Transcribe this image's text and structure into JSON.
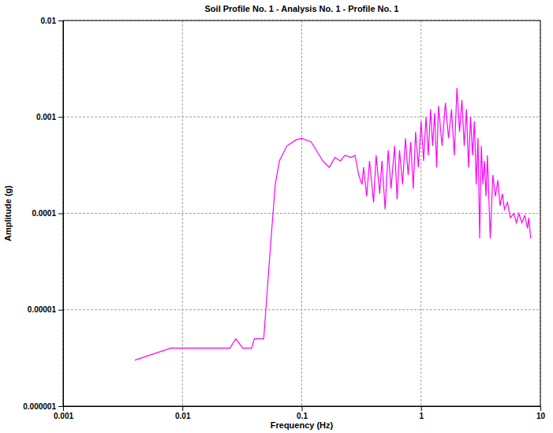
{
  "chart_data": {
    "type": "line",
    "title": "Soil Profile No.  1 - Analysis No.  1 - Profile No. 1",
    "x_label": "Frequency (Hz)",
    "y_label": "Amplitude (g)",
    "log": true,
    "grid": true,
    "xlim": [
      0.001,
      10
    ],
    "xticks": [
      0.001,
      0.01,
      0.1,
      1,
      10
    ],
    "ylim": [
      1e-06,
      0.01
    ],
    "yticks": [
      1e-06,
      1e-05,
      0.0001,
      0.001,
      0.01
    ],
    "series": [
      {
        "name": "Profile No. 1",
        "color": "#ff00ff",
        "x": [
          0.004,
          0.008,
          0.025,
          0.028,
          0.032,
          0.038,
          0.04,
          0.048,
          0.05,
          0.055,
          0.06,
          0.065,
          0.075,
          0.09,
          0.1,
          0.12,
          0.15,
          0.17,
          0.19,
          0.21,
          0.23,
          0.26,
          0.28,
          0.3,
          0.32,
          0.33,
          0.35,
          0.37,
          0.4,
          0.42,
          0.45,
          0.47,
          0.5,
          0.53,
          0.56,
          0.6,
          0.63,
          0.66,
          0.7,
          0.74,
          0.78,
          0.82,
          0.86,
          0.9,
          0.95,
          1.0,
          1.05,
          1.1,
          1.15,
          1.2,
          1.25,
          1.3,
          1.35,
          1.4,
          1.5,
          1.6,
          1.7,
          1.8,
          1.9,
          2.0,
          2.1,
          2.2,
          2.3,
          2.4,
          2.5,
          2.6,
          2.7,
          2.8,
          2.9,
          3.0,
          3.1,
          3.2,
          3.3,
          3.4,
          3.5,
          3.6,
          3.8,
          4.0,
          4.2,
          4.4,
          4.6,
          4.8,
          5.0,
          5.3,
          5.6,
          6.0,
          6.3,
          6.6,
          7.0,
          7.4,
          7.8,
          8.0,
          8.3
        ],
        "values": [
          3e-06,
          4e-06,
          4e-06,
          5e-06,
          4e-06,
          4e-06,
          5e-06,
          5e-06,
          1e-05,
          5e-05,
          0.0002,
          0.00035,
          0.0005,
          0.00058,
          0.0006,
          0.00055,
          0.00035,
          0.0003,
          0.00038,
          0.00035,
          0.0004,
          0.00038,
          0.0004,
          0.00025,
          0.0002,
          0.0003,
          0.00015,
          0.00035,
          0.00013,
          0.0004,
          0.00016,
          0.00035,
          0.00011,
          0.00045,
          0.00018,
          0.0005,
          0.00014,
          0.00045,
          0.0002,
          0.0006,
          0.00025,
          0.00055,
          0.00018,
          0.0007,
          0.0003,
          0.0009,
          0.00035,
          0.001,
          0.0004,
          0.0012,
          0.0005,
          0.0011,
          0.0003,
          0.0013,
          0.0005,
          0.0014,
          0.0006,
          0.0012,
          0.0004,
          0.002,
          0.0007,
          0.0015,
          0.0005,
          0.0012,
          0.0003,
          0.001,
          0.0004,
          0.0009,
          0.0002,
          0.0006,
          5.5e-05,
          0.0005,
          0.0002,
          0.00035,
          0.00015,
          0.0004,
          5.5e-05,
          0.00025,
          0.00015,
          0.00022,
          0.00012,
          0.00016,
          0.00011,
          0.00013,
          9e-05,
          0.0001,
          8e-05,
          0.0001,
          8e-05,
          9.5e-05,
          7e-05,
          9e-05,
          5.5e-05
        ]
      }
    ]
  }
}
